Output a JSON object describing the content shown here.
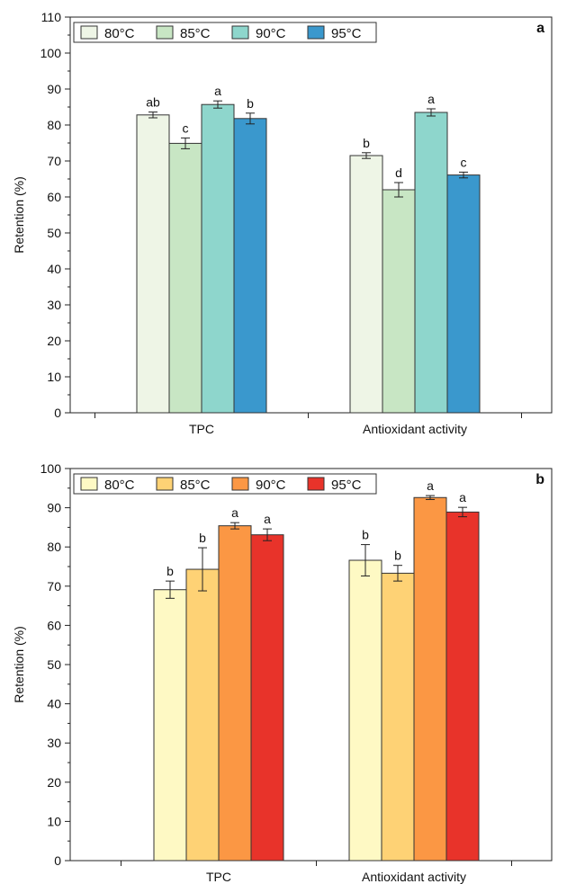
{
  "chart_data": [
    {
      "type": "bar",
      "panel_label": "a",
      "ylabel": "Retention (%)",
      "ylim": [
        0,
        110
      ],
      "yticks": [
        0,
        10,
        20,
        30,
        40,
        50,
        60,
        70,
        80,
        90,
        100,
        110
      ],
      "categories": [
        "TPC",
        "Antioxidant activity"
      ],
      "grid": false,
      "legend_position": "top-left",
      "series": [
        {
          "name": "80°C",
          "color": "#eef5e6",
          "values": [
            82.8,
            71.5
          ],
          "errors": [
            0.8,
            0.8
          ],
          "labels": [
            "ab",
            "b"
          ]
        },
        {
          "name": "85°C",
          "color": "#c8e6c4",
          "values": [
            74.9,
            62.0
          ],
          "errors": [
            1.5,
            2.0
          ],
          "labels": [
            "c",
            "d"
          ]
        },
        {
          "name": "90°C",
          "color": "#8ed6cc",
          "values": [
            85.7,
            83.5
          ],
          "errors": [
            1.0,
            1.0
          ],
          "labels": [
            "a",
            "a"
          ]
        },
        {
          "name": "95°C",
          "color": "#3a98cd",
          "values": [
            81.8,
            66.1
          ],
          "errors": [
            1.5,
            0.8
          ],
          "labels": [
            "b",
            "c"
          ]
        }
      ]
    },
    {
      "type": "bar",
      "panel_label": "b",
      "ylabel": "Retention (%)",
      "ylim": [
        0,
        100
      ],
      "yticks": [
        0,
        10,
        20,
        30,
        40,
        50,
        60,
        70,
        80,
        90,
        100
      ],
      "categories": [
        "TPC",
        "Antioxidant activity"
      ],
      "grid": false,
      "legend_position": "top-left",
      "series": [
        {
          "name": "80°C",
          "color": "#fef9c4",
          "values": [
            69.1,
            76.6
          ],
          "errors": [
            2.2,
            4.0
          ],
          "labels": [
            "b",
            "b"
          ]
        },
        {
          "name": "85°C",
          "color": "#fed275",
          "values": [
            74.3,
            73.3
          ],
          "errors": [
            5.5,
            2.0
          ],
          "labels": [
            "b",
            "b"
          ]
        },
        {
          "name": "90°C",
          "color": "#fb9744",
          "values": [
            85.4,
            92.6
          ],
          "errors": [
            0.8,
            0.5
          ],
          "labels": [
            "a",
            "a"
          ]
        },
        {
          "name": "95°C",
          "color": "#e8332a",
          "values": [
            83.1,
            88.9
          ],
          "errors": [
            1.5,
            1.2
          ],
          "labels": [
            "a",
            "a"
          ]
        }
      ]
    }
  ]
}
